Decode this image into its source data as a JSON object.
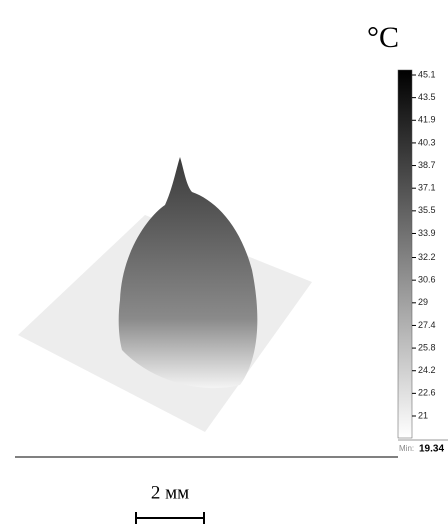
{
  "unit": "°C",
  "colorbar": {
    "ticks": [
      45.1,
      43.5,
      41.9,
      40.3,
      38.7,
      37.1,
      35.5,
      33.9,
      32.2,
      30.6,
      29,
      27.4,
      25.8,
      24.2,
      22.6,
      21
    ],
    "min_label": "Min:",
    "min_value": 19.34
  },
  "scale_bar": "2 мм"
}
